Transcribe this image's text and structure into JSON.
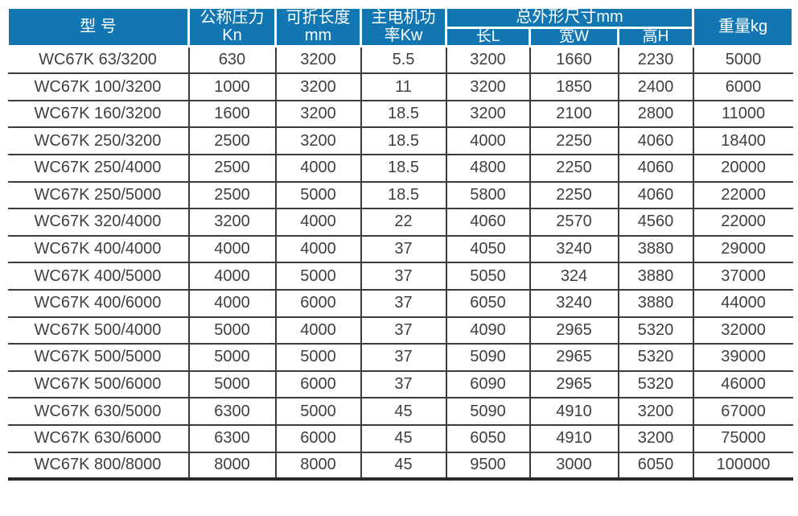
{
  "colors": {
    "header_bg": "#1176b2",
    "header_text": "#ffffff",
    "body_text": "#3f3f3f",
    "grid_line": "#3c3c3c",
    "bottom_border": "#2b2b2b"
  },
  "table": {
    "header": {
      "model": "型 号",
      "pressure": [
        "公称压力",
        "Kn"
      ],
      "fold_length": [
        "可折长度",
        "mm"
      ],
      "motor_power": [
        "主电机功",
        "率Kw"
      ],
      "overall_dims": "总外形尺寸mm",
      "dim_cols": [
        "长L",
        "宽W",
        "高H"
      ],
      "weight": "重量kg"
    },
    "rows": [
      [
        "WC67K 63/3200",
        "630",
        "3200",
        "5.5",
        "3200",
        "1660",
        "2230",
        "5000"
      ],
      [
        "WC67K 100/3200",
        "1000",
        "3200",
        "11",
        "3200",
        "1850",
        "2400",
        "6000"
      ],
      [
        "WC67K 160/3200",
        "1600",
        "3200",
        "18.5",
        "3200",
        "2100",
        "2800",
        "11000"
      ],
      [
        "WC67K 250/3200",
        "2500",
        "3200",
        "18.5",
        "4000",
        "2250",
        "4060",
        "18400"
      ],
      [
        "WC67K 250/4000",
        "2500",
        "4000",
        "18.5",
        "4800",
        "2250",
        "4060",
        "20000"
      ],
      [
        "WC67K 250/5000",
        "2500",
        "5000",
        "18.5",
        "5800",
        "2250",
        "4060",
        "22000"
      ],
      [
        "WC67K 320/4000",
        "3200",
        "4000",
        "22",
        "4060",
        "2570",
        "4560",
        "22000"
      ],
      [
        "WC67K 400/4000",
        "4000",
        "4000",
        "37",
        "4050",
        "3240",
        "3880",
        "29000"
      ],
      [
        "WC67K 400/5000",
        "4000",
        "5000",
        "37",
        "5050",
        "324",
        "3880",
        "37000"
      ],
      [
        "WC67K 400/6000",
        "4000",
        "6000",
        "37",
        "6050",
        "3240",
        "3880",
        "44000"
      ],
      [
        "WC67K 500/4000",
        "5000",
        "4000",
        "37",
        "4090",
        "2965",
        "5320",
        "32000"
      ],
      [
        "WC67K 500/5000",
        "5000",
        "5000",
        "37",
        "5090",
        "2965",
        "5320",
        "39000"
      ],
      [
        "WC67K 500/6000",
        "5000",
        "6000",
        "37",
        "6090",
        "2965",
        "5320",
        "46000"
      ],
      [
        "WC67K 630/5000",
        "6300",
        "5000",
        "45",
        "5090",
        "4910",
        "3200",
        "67000"
      ],
      [
        "WC67K 630/6000",
        "6300",
        "6000",
        "45",
        "6050",
        "4910",
        "3200",
        "75000"
      ],
      [
        "WC67K 800/8000",
        "8000",
        "8000",
        "45",
        "9500",
        "3000",
        "6050",
        "100000"
      ]
    ]
  }
}
